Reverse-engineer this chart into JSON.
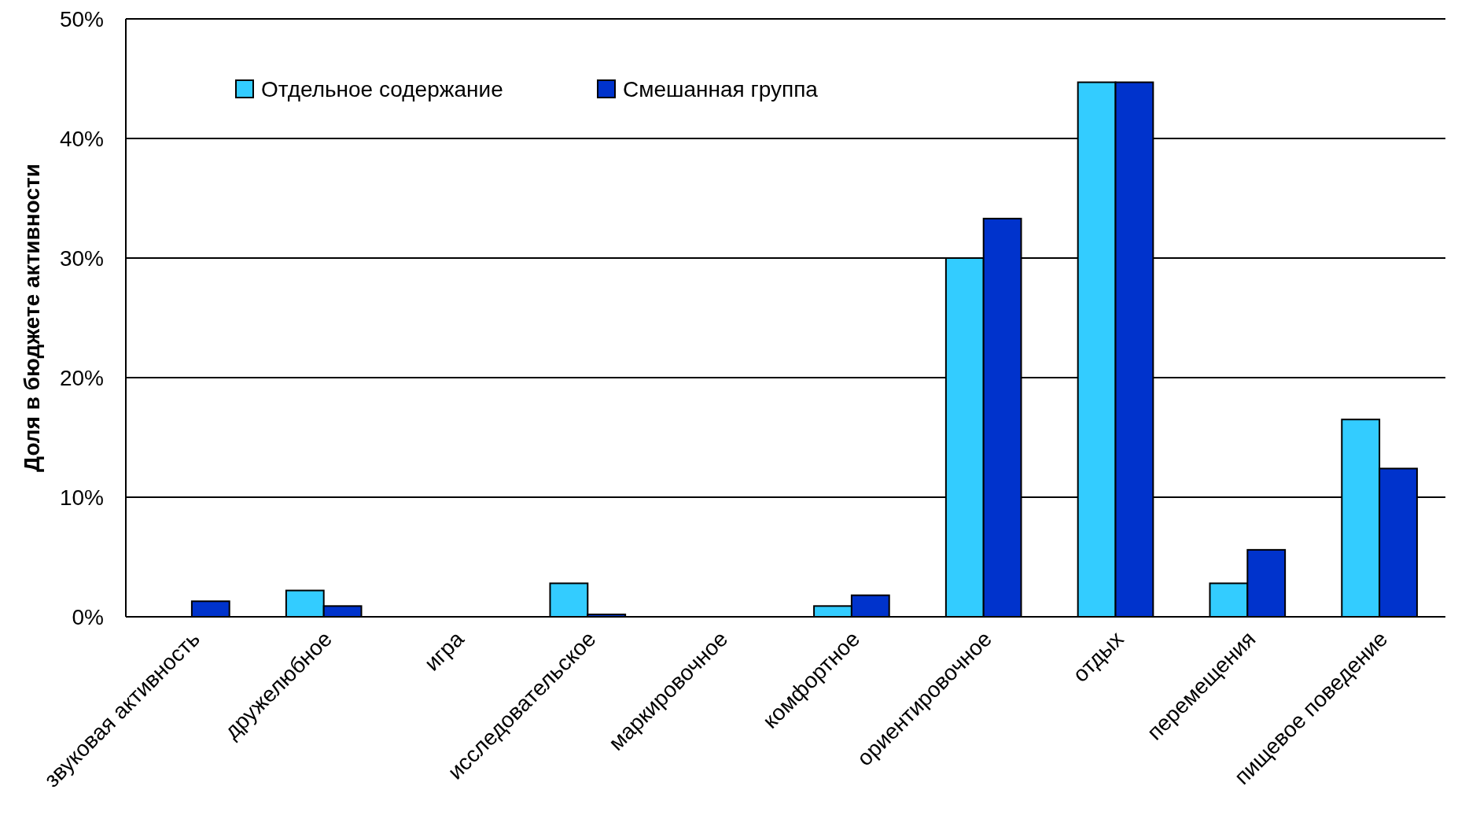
{
  "chart_data": {
    "type": "bar",
    "ylabel": "Доля в бюджете активности",
    "categories": [
      "звуковая активность",
      "дружелюбное",
      "игра",
      "исследовательское",
      "маркировочное",
      "комфортное",
      "ориентировочное",
      "отдых",
      "перемещения",
      "пищевое поведение"
    ],
    "series": [
      {
        "name": "Отдельное содержание",
        "color": "#33ccff",
        "values": [
          0,
          2.2,
          0,
          2.8,
          0,
          0.9,
          30.0,
          44.7,
          2.8,
          16.5
        ]
      },
      {
        "name": "Смешанная группа",
        "color": "#0033cc",
        "values": [
          1.3,
          0.9,
          0,
          0.2,
          0,
          1.8,
          33.3,
          44.7,
          5.6,
          12.4
        ]
      }
    ],
    "ylim": [
      0,
      50
    ],
    "yticks": [
      {
        "value": 0,
        "label": "0%"
      },
      {
        "value": 10,
        "label": "10%"
      },
      {
        "value": 20,
        "label": "20%"
      },
      {
        "value": 30,
        "label": "30%"
      },
      {
        "value": 40,
        "label": "40%"
      },
      {
        "value": 50,
        "label": "50%"
      }
    ],
    "grid": "y",
    "legend": "top left"
  }
}
